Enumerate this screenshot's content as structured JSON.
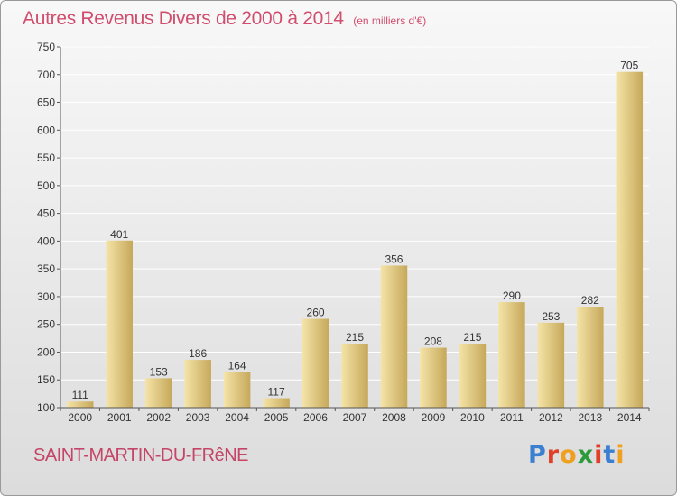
{
  "title": "Autres Revenus Divers de 2000 à 2014",
  "unit": "(en milliers d'€)",
  "place": "SAINT-MARTIN-DU-FRêNE",
  "logo": {
    "text": "Proxiti",
    "letter_colors": [
      "#3a7fd0",
      "#e0402a",
      "#f0a020",
      "#2b9a3a",
      "#e0402a",
      "#3a7fd0",
      "#f0a020"
    ]
  },
  "colors": {
    "title": "#d14d6e",
    "bar_light": "#f5e3a6",
    "bar_dark": "#c9ad62",
    "grid": "#ffffff"
  },
  "chart_data": {
    "type": "bar",
    "categories": [
      "2000",
      "2001",
      "2002",
      "2003",
      "2004",
      "2005",
      "2006",
      "2007",
      "2008",
      "2009",
      "2010",
      "2011",
      "2012",
      "2013",
      "2014"
    ],
    "values": [
      111,
      401,
      153,
      186,
      164,
      117,
      260,
      215,
      356,
      208,
      215,
      290,
      253,
      282,
      705
    ],
    "title": "Autres Revenus Divers de 2000 à 2014",
    "ylim": [
      100,
      750
    ],
    "yticks": [
      100,
      150,
      200,
      250,
      300,
      350,
      400,
      450,
      500,
      550,
      600,
      650,
      700,
      750
    ],
    "grid": true,
    "data_labels": true
  }
}
